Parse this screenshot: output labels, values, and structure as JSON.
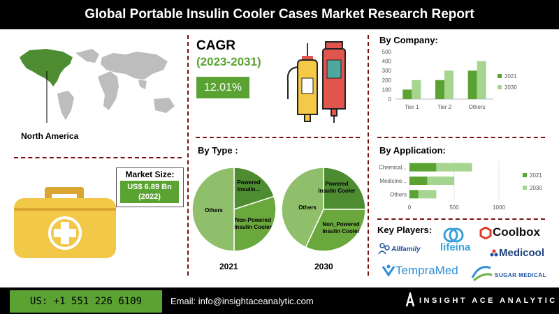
{
  "header": {
    "title": "Global Portable Insulin Cooler Cases Market Research Report"
  },
  "region": {
    "label": "North America"
  },
  "cagr": {
    "title": "CAGR",
    "period": "(2023-2031)",
    "value": "12.01%"
  },
  "market_size": {
    "label": "Market Size:",
    "value_line1": "US$ 6.89 Bn",
    "value_line2": "(2022)"
  },
  "sections": {
    "by_company": "By Company:",
    "by_type": "By Type :",
    "by_application": "By Application:",
    "key_players": "Key Players:"
  },
  "players": [
    {
      "name": "Coolbox",
      "icon": "coolbox-hex-icon"
    },
    {
      "name": "lifeina",
      "icon": "lifeina-logo-icon"
    },
    {
      "name": "Medicool",
      "icon": "medicool-logo-icon"
    },
    {
      "name": "Allfamily",
      "icon": "allfamily-logo-icon"
    },
    {
      "name": "TempraMed",
      "icon": "tempramed-logo-icon"
    },
    {
      "name": "SUGAR MEDICAL",
      "icon": "sugar-medical-logo-icon"
    }
  ],
  "footer": {
    "phone": "US: +1 551 226 6109",
    "email": "Email: info@insightaceanalytic.com",
    "brand": "INSIGHT ACE ANALYTIC"
  },
  "colors": {
    "dark_green": "#5aa332",
    "light_green": "#a5d58e",
    "pie_dark": "#4e8c32",
    "pie_mid": "#6aa83e",
    "pie_light": "#8fbf6a",
    "accent_red": "#7a1010"
  },
  "chart_data": [
    {
      "type": "bar",
      "title": "By Company:",
      "categories": [
        "Tier 1",
        "Tier 2",
        "Others"
      ],
      "series": [
        {
          "name": "2021",
          "values": [
            100,
            200,
            300
          ]
        },
        {
          "name": "2030",
          "values": [
            200,
            300,
            400
          ]
        }
      ],
      "ylim": [
        0,
        500
      ],
      "yticks": [
        0,
        100,
        200,
        300,
        400,
        500
      ],
      "legend": "right"
    },
    {
      "type": "bar",
      "orientation": "horizontal",
      "stacked": true,
      "title": "By Application:",
      "categories": [
        "Chemical...",
        "Medicine...",
        "Others"
      ],
      "series": [
        {
          "name": "2021",
          "values": [
            300,
            200,
            100
          ]
        },
        {
          "name": "2030",
          "values": [
            400,
            300,
            200
          ]
        }
      ],
      "xlim": [
        0,
        1000
      ],
      "xticks": [
        0,
        500,
        1000
      ],
      "legend": "right"
    },
    {
      "type": "pie",
      "title": "By Type :",
      "label": "2021",
      "slices": [
        {
          "name": "Powered Insulin...",
          "value": 20
        },
        {
          "name": "Non-Powered Insulin Cooler",
          "value": 30
        },
        {
          "name": "Others",
          "value": 50
        }
      ]
    },
    {
      "type": "pie",
      "label": "2030",
      "slices": [
        {
          "name": "Powered Insulin Cooler",
          "value": 25
        },
        {
          "name": "Non_Powered Insulin Cooler",
          "value": 32
        },
        {
          "name": "Others",
          "value": 43
        }
      ]
    }
  ]
}
